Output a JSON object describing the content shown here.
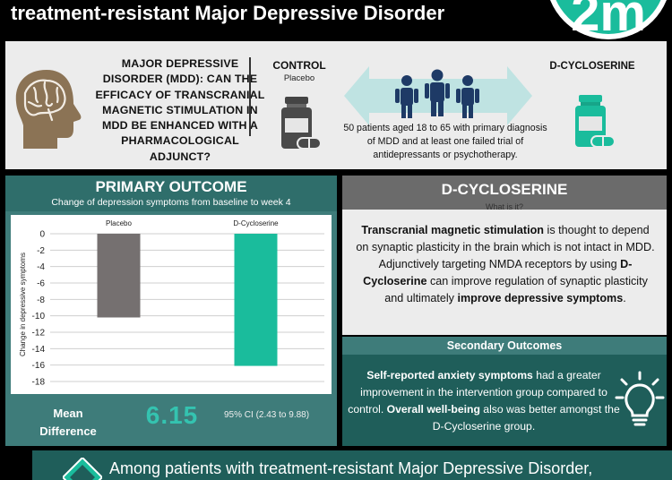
{
  "header": {
    "title": "treatment-resistant Major Depressive Disorder",
    "logo_text": "2m"
  },
  "question": "MAJOR DEPRESSIVE DISORDER (MDD): CAN THE EFFICACY OF TRANSCRANIAL MAGNETIC STIMULATION IN MDD BE ENHANCED WITH A PHARMACOLOGICAL ADJUNCT?",
  "arms": {
    "control_label": "CONTROL",
    "control_sub": "Placebo",
    "dcs_label": "D-CYCLOSERINE"
  },
  "patients": "50 patients aged 18 to 65 with primary diagnosis of MDD and at least one failed trial of antidepressants or psychotherapy.",
  "primary": {
    "title": "PRIMARY OUTCOME",
    "subtitle": "Change of depression symptoms from baseline to week 4",
    "mean_label_1": "Mean",
    "mean_label_2": "Difference",
    "mean_value": "6.15",
    "ci": "95% CI (2.43 to 9.88)"
  },
  "chart_data": {
    "type": "bar",
    "categories": [
      "Placebo",
      "D-Cycloserine"
    ],
    "values": [
      -10.2,
      -16.1
    ],
    "colors": [
      "#757070",
      "#1abc9c"
    ],
    "ylabel": "Change in depressive symptoms",
    "ylim": [
      -18,
      0
    ],
    "yticks": [
      "0",
      "-2",
      "-4",
      "-6",
      "-8",
      "-10",
      "-12",
      "-14",
      "-16",
      "-18"
    ],
    "grid": true
  },
  "dcs": {
    "title": "D-CYCLOSERINE",
    "subtitle": "What is it?",
    "p1_b": "Transcranial magnetic stimulation",
    "p1": " is thought to depend on synaptic plasticity in the brain which is not intact in MDD. Adjunctively targeting NMDA receptors by using ",
    "p2_b": "D-Cycloserine",
    "p2": " can improve regulation of synaptic plasticity and ultimately ",
    "p3_b": "improve depressive symptoms",
    "p3": "."
  },
  "secondary": {
    "title": "Secondary Outcomes",
    "s1_b": "Self-reported anxiety symptoms",
    "s1": " had a greater improvement in the intervention group compared to control. ",
    "s2_b": "Overall well-being",
    "s2": " also was better amongst the D-Cycloserine group."
  },
  "bottom": {
    "text": "Among patients with treatment-resistant Major Depressive Disorder,"
  },
  "colors": {
    "teal_dark": "#1f5e5a",
    "teal": "#3e7c7a",
    "accent": "#1abc9c",
    "grey_panel": "#ececec"
  }
}
